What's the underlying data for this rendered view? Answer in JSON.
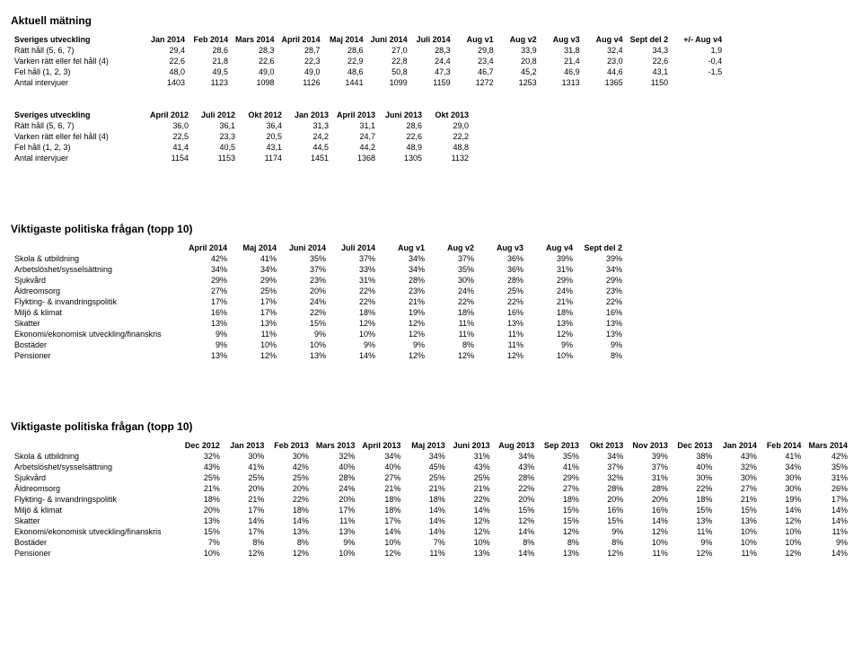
{
  "section_titles": {
    "aktuell": "Aktuell mätning",
    "top10": "Viktigaste politiska frågan (topp 10)"
  },
  "table1": {
    "header_label": "Sveriges utveckling",
    "cols": [
      "Jan 2014",
      "Feb 2014",
      "Mars 2014",
      "April 2014",
      "Maj 2014",
      "Juni 2014",
      "Juli 2014",
      "Aug v1",
      "Aug v2",
      "Aug v3",
      "Aug v4",
      "Sept del 2",
      "+/- Aug v4"
    ],
    "rows": [
      {
        "label": "Rätt håll (5, 6, 7)",
        "vals": [
          "29,4",
          "28,6",
          "28,3",
          "28,7",
          "28,6",
          "27,0",
          "28,3",
          "29,8",
          "33,9",
          "31,8",
          "32,4",
          "34,3",
          "1,9"
        ]
      },
      {
        "label": "Varken rätt eller fel håll (4)",
        "vals": [
          "22,6",
          "21,8",
          "22,6",
          "22,3",
          "22,9",
          "22,8",
          "24,4",
          "23,4",
          "20,8",
          "21,4",
          "23,0",
          "22,6",
          "-0,4"
        ]
      },
      {
        "label": "Fel håll (1, 2, 3)",
        "vals": [
          "48,0",
          "49,5",
          "49,0",
          "49,0",
          "48,6",
          "50,8",
          "47,3",
          "46,7",
          "45,2",
          "46,9",
          "44,6",
          "43,1",
          "-1,5"
        ]
      },
      {
        "label": "Antal intervjuer",
        "vals": [
          "1403",
          "1123",
          "1098",
          "1126",
          "1441",
          "1099",
          "1159",
          "1272",
          "1253",
          "1313",
          "1365",
          "1150",
          ""
        ]
      }
    ]
  },
  "table2": {
    "header_label": "Sveriges utveckling",
    "cols": [
      "April 2012",
      "Juli 2012",
      "Okt 2012",
      "Jan 2013",
      "April 2013",
      "Juni 2013",
      "Okt 2013"
    ],
    "rows": [
      {
        "label": "Rätt håll (5, 6, 7)",
        "vals": [
          "36,0",
          "36,1",
          "36,4",
          "31,3",
          "31,1",
          "28,6",
          "29,0"
        ]
      },
      {
        "label": "Varken rätt eller fel håll (4)",
        "vals": [
          "22,5",
          "23,3",
          "20,5",
          "24,2",
          "24,7",
          "22,6",
          "22,2"
        ]
      },
      {
        "label": "Fel håll (1, 2, 3)",
        "vals": [
          "41,4",
          "40,5",
          "43,1",
          "44,5",
          "44,2",
          "48,9",
          "48,8"
        ]
      },
      {
        "label": "Antal intervjuer",
        "vals": [
          "1154",
          "1153",
          "1174",
          "1451",
          "1368",
          "1305",
          "1132"
        ]
      }
    ]
  },
  "table3": {
    "cols": [
      "April 2014",
      "Maj 2014",
      "Juni 2014",
      "Juli 2014",
      "Aug v1",
      "Aug v2",
      "Aug v3",
      "Aug v4",
      "Sept del 2"
    ],
    "rows": [
      {
        "label": "Skola & utbildning",
        "vals": [
          "42%",
          "41%",
          "35%",
          "37%",
          "34%",
          "37%",
          "36%",
          "39%",
          "39%"
        ]
      },
      {
        "label": "Arbetslöshet/sysselsättning",
        "vals": [
          "34%",
          "34%",
          "37%",
          "33%",
          "34%",
          "35%",
          "36%",
          "31%",
          "34%"
        ]
      },
      {
        "label": "Sjukvård",
        "vals": [
          "29%",
          "29%",
          "23%",
          "31%",
          "28%",
          "30%",
          "28%",
          "29%",
          "29%"
        ]
      },
      {
        "label": "Äldreomsorg",
        "vals": [
          "27%",
          "25%",
          "20%",
          "22%",
          "23%",
          "24%",
          "25%",
          "24%",
          "23%"
        ]
      },
      {
        "label": "Flykting- & invandringspolitik",
        "vals": [
          "17%",
          "17%",
          "24%",
          "22%",
          "21%",
          "22%",
          "22%",
          "21%",
          "22%"
        ]
      },
      {
        "label": "Miljö & klimat",
        "vals": [
          "16%",
          "17%",
          "22%",
          "18%",
          "19%",
          "18%",
          "16%",
          "18%",
          "16%"
        ]
      },
      {
        "label": "Skatter",
        "vals": [
          "13%",
          "13%",
          "15%",
          "12%",
          "12%",
          "11%",
          "13%",
          "13%",
          "13%"
        ]
      },
      {
        "label": "Ekonomi/ekonomisk utveckling/finanskris",
        "vals": [
          "9%",
          "11%",
          "9%",
          "10%",
          "12%",
          "11%",
          "11%",
          "12%",
          "13%"
        ]
      },
      {
        "label": "Bostäder",
        "vals": [
          "9%",
          "10%",
          "10%",
          "9%",
          "9%",
          "8%",
          "11%",
          "9%",
          "9%"
        ]
      },
      {
        "label": "Pensioner",
        "vals": [
          "13%",
          "12%",
          "13%",
          "14%",
          "12%",
          "12%",
          "12%",
          "10%",
          "8%"
        ]
      }
    ]
  },
  "table4": {
    "cols": [
      "Dec 2012",
      "Jan 2013",
      "Feb 2013",
      "Mars 2013",
      "April 2013",
      "Maj 2013",
      "Juni 2013",
      "Aug 2013",
      "Sep 2013",
      "Okt 2013",
      "Nov 2013",
      "Dec 2013",
      "Jan 2014",
      "Feb 2014",
      "Mars 2014"
    ],
    "rows": [
      {
        "label": "Skola & utbildning",
        "vals": [
          "32%",
          "30%",
          "30%",
          "32%",
          "34%",
          "34%",
          "31%",
          "34%",
          "35%",
          "34%",
          "39%",
          "38%",
          "43%",
          "41%",
          "42%"
        ]
      },
      {
        "label": "Arbetslöshet/sysselsättning",
        "vals": [
          "43%",
          "41%",
          "42%",
          "40%",
          "40%",
          "45%",
          "43%",
          "43%",
          "41%",
          "37%",
          "37%",
          "40%",
          "32%",
          "34%",
          "35%"
        ]
      },
      {
        "label": "Sjukvård",
        "vals": [
          "25%",
          "25%",
          "25%",
          "28%",
          "27%",
          "25%",
          "25%",
          "28%",
          "29%",
          "32%",
          "31%",
          "30%",
          "30%",
          "30%",
          "31%"
        ]
      },
      {
        "label": "Äldreomsorg",
        "vals": [
          "21%",
          "20%",
          "20%",
          "24%",
          "21%",
          "21%",
          "21%",
          "22%",
          "27%",
          "28%",
          "28%",
          "22%",
          "27%",
          "30%",
          "26%"
        ]
      },
      {
        "label": "Flykting- & invandringspolitik",
        "vals": [
          "18%",
          "21%",
          "22%",
          "20%",
          "18%",
          "18%",
          "22%",
          "20%",
          "18%",
          "20%",
          "20%",
          "18%",
          "21%",
          "19%",
          "17%"
        ]
      },
      {
        "label": "Miljö & klimat",
        "vals": [
          "20%",
          "17%",
          "18%",
          "17%",
          "18%",
          "14%",
          "14%",
          "15%",
          "15%",
          "16%",
          "16%",
          "15%",
          "15%",
          "14%",
          "14%"
        ]
      },
      {
        "label": "Skatter",
        "vals": [
          "13%",
          "14%",
          "14%",
          "11%",
          "17%",
          "14%",
          "12%",
          "12%",
          "15%",
          "15%",
          "14%",
          "13%",
          "13%",
          "12%",
          "14%"
        ]
      },
      {
        "label": "Ekonomi/ekonomisk utveckling/finanskris",
        "vals": [
          "15%",
          "17%",
          "13%",
          "13%",
          "14%",
          "14%",
          "12%",
          "14%",
          "12%",
          "9%",
          "12%",
          "11%",
          "10%",
          "10%",
          "11%"
        ]
      },
      {
        "label": "Bostäder",
        "vals": [
          "7%",
          "8%",
          "8%",
          "9%",
          "10%",
          "7%",
          "10%",
          "8%",
          "8%",
          "8%",
          "10%",
          "9%",
          "10%",
          "10%",
          "9%"
        ]
      },
      {
        "label": "Pensioner",
        "vals": [
          "10%",
          "12%",
          "12%",
          "10%",
          "12%",
          "11%",
          "13%",
          "14%",
          "13%",
          "12%",
          "11%",
          "12%",
          "11%",
          "12%",
          "14%"
        ]
      }
    ]
  }
}
